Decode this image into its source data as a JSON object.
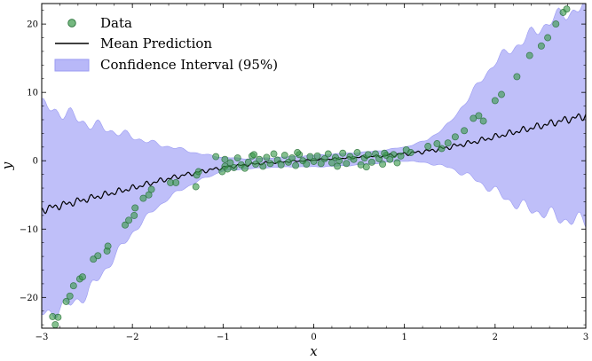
{
  "chart_data": {
    "type": "scatter",
    "title": "",
    "xlabel": "x",
    "ylabel": "y",
    "xlim": [
      -3,
      3
    ],
    "ylim": [
      -24.5,
      23
    ],
    "xticks": [
      -3,
      -2,
      -1,
      0,
      1,
      2,
      3
    ],
    "xtick_labels": [
      "−3",
      "−2",
      "−1",
      "0",
      "1",
      "2",
      "3"
    ],
    "yticks": [
      -20,
      -10,
      0,
      10,
      20
    ],
    "ytick_labels": [
      "−20",
      "−10",
      "0",
      "10",
      "20"
    ],
    "grid": false,
    "legend_position": "top-left",
    "colors": {
      "data": "#3a9a4a",
      "data_edge": "#1f6a30",
      "mean": "#000000",
      "band_fill": "#b8b8f8",
      "band_edge": "#9a9af2"
    },
    "series": [
      {
        "name": "Data",
        "kind": "scatter",
        "points": [
          [
            -2.88,
            -22.8
          ],
          [
            -2.85,
            -24.0
          ],
          [
            -2.82,
            -22.9
          ],
          [
            -2.73,
            -20.6
          ],
          [
            -2.69,
            -19.8
          ],
          [
            -2.65,
            -18.3
          ],
          [
            -2.58,
            -17.3
          ],
          [
            -2.55,
            -17.0
          ],
          [
            -2.43,
            -14.4
          ],
          [
            -2.38,
            -13.9
          ],
          [
            -2.28,
            -13.2
          ],
          [
            -2.27,
            -12.5
          ],
          [
            -2.08,
            -9.4
          ],
          [
            -2.04,
            -8.7
          ],
          [
            -1.98,
            -8.0
          ],
          [
            -1.97,
            -6.9
          ],
          [
            -1.88,
            -5.5
          ],
          [
            -1.82,
            -5.0
          ],
          [
            -1.79,
            -4.2
          ],
          [
            -1.58,
            -3.2
          ],
          [
            -1.52,
            -3.2
          ],
          [
            -1.3,
            -3.8
          ],
          [
            -1.29,
            -2.1
          ],
          [
            -1.27,
            -1.6
          ],
          [
            -1.08,
            0.6
          ],
          [
            -1.01,
            -1.6
          ],
          [
            -0.98,
            -0.8
          ],
          [
            -0.95,
            -1.2
          ],
          [
            -0.92,
            -0.3
          ],
          [
            -0.88,
            -1.0
          ],
          [
            -0.84,
            0.4
          ],
          [
            -0.8,
            -0.6
          ],
          [
            -0.76,
            -1.1
          ],
          [
            -0.72,
            -0.2
          ],
          [
            -0.68,
            0.7
          ],
          [
            -0.64,
            -0.5
          ],
          [
            -0.6,
            0.2
          ],
          [
            -0.56,
            -0.8
          ],
          [
            -0.52,
            0.5
          ],
          [
            -0.48,
            -0.4
          ],
          [
            -0.44,
            1.0
          ],
          [
            -0.4,
            0.1
          ],
          [
            -0.36,
            -0.6
          ],
          [
            -0.32,
            0.8
          ],
          [
            -0.28,
            -0.2
          ],
          [
            -0.24,
            0.4
          ],
          [
            -0.2,
            -0.7
          ],
          [
            -0.16,
            0.9
          ],
          [
            -0.12,
            0.0
          ],
          [
            -0.08,
            -0.5
          ],
          [
            -0.04,
            0.6
          ],
          [
            0.0,
            -0.1
          ],
          [
            0.04,
            0.7
          ],
          [
            0.08,
            -0.4
          ],
          [
            0.12,
            0.3
          ],
          [
            0.16,
            1.0
          ],
          [
            0.2,
            -0.3
          ],
          [
            0.24,
            0.5
          ],
          [
            0.28,
            0.0
          ],
          [
            0.32,
            1.1
          ],
          [
            0.36,
            -0.4
          ],
          [
            0.4,
            0.6
          ],
          [
            0.44,
            0.2
          ],
          [
            0.48,
            1.2
          ],
          [
            0.52,
            -0.6
          ],
          [
            0.56,
            0.4
          ],
          [
            0.6,
            0.9
          ],
          [
            0.64,
            -0.2
          ],
          [
            0.68,
            1.0
          ],
          [
            0.72,
            0.3
          ],
          [
            0.76,
            -0.5
          ],
          [
            0.8,
            0.8
          ],
          [
            0.84,
            0.2
          ],
          [
            0.88,
            0.9
          ],
          [
            0.92,
            -0.3
          ],
          [
            0.96,
            0.7
          ],
          [
            -0.98,
            0.2
          ],
          [
            -0.66,
            0.9
          ],
          [
            -0.18,
            1.2
          ],
          [
            0.26,
            -0.8
          ],
          [
            0.58,
            -0.9
          ],
          [
            0.78,
            1.1
          ],
          [
            1.02,
            1.6
          ],
          [
            1.07,
            1.2
          ],
          [
            1.26,
            2.1
          ],
          [
            1.36,
            2.5
          ],
          [
            1.41,
            1.8
          ],
          [
            1.48,
            2.6
          ],
          [
            1.56,
            3.5
          ],
          [
            1.66,
            4.4
          ],
          [
            1.76,
            6.2
          ],
          [
            1.82,
            6.6
          ],
          [
            1.87,
            5.8
          ],
          [
            2.0,
            8.8
          ],
          [
            2.07,
            9.7
          ],
          [
            2.24,
            12.3
          ],
          [
            2.38,
            15.4
          ],
          [
            2.51,
            16.8
          ],
          [
            2.58,
            18.0
          ],
          [
            2.67,
            20.0
          ],
          [
            2.75,
            21.7
          ],
          [
            2.79,
            22.2
          ]
        ]
      },
      {
        "name": "Mean Prediction",
        "kind": "line",
        "x": [
          -3.0,
          -2.75,
          -2.5,
          -2.25,
          -2.0,
          -1.75,
          -1.5,
          -1.25,
          -1.0,
          -0.75,
          -0.5,
          -0.25,
          0.0,
          0.25,
          0.5,
          0.75,
          1.0,
          1.25,
          1.5,
          1.75,
          2.0,
          2.25,
          2.5,
          2.75,
          3.0
        ],
        "y": [
          -7.2,
          -6.4,
          -5.6,
          -4.8,
          -4.0,
          -3.1,
          -2.3,
          -1.6,
          -1.0,
          -0.6,
          -0.3,
          -0.1,
          0.1,
          0.3,
          0.5,
          0.7,
          1.0,
          1.4,
          2.0,
          2.7,
          3.5,
          4.3,
          5.1,
          5.9,
          6.6
        ]
      },
      {
        "name": "Confidence Interval (95%)",
        "kind": "band",
        "x": [
          -3.0,
          -2.75,
          -2.5,
          -2.25,
          -2.0,
          -1.75,
          -1.5,
          -1.25,
          -1.0,
          -0.75,
          -0.5,
          -0.25,
          0.0,
          0.25,
          0.5,
          0.75,
          1.0,
          1.25,
          1.5,
          1.75,
          2.0,
          2.25,
          2.5,
          2.75,
          3.0
        ],
        "lower": [
          -22.5,
          -21.5,
          -19.5,
          -15.0,
          -10.5,
          -7.0,
          -4.5,
          -2.8,
          -1.5,
          -1.2,
          -1.0,
          -0.9,
          -0.9,
          -0.8,
          -0.6,
          -0.3,
          0.0,
          -0.3,
          -1.0,
          -2.5,
          -4.5,
          -6.5,
          -7.5,
          -8.5,
          -9.0
        ],
        "upper": [
          8.0,
          7.0,
          5.5,
          4.5,
          3.5,
          2.5,
          1.8,
          1.0,
          0.5,
          0.3,
          0.4,
          0.6,
          0.8,
          1.0,
          1.2,
          1.5,
          2.0,
          3.0,
          5.5,
          10.0,
          14.5,
          17.0,
          19.5,
          21.5,
          22.5
        ]
      }
    ]
  }
}
